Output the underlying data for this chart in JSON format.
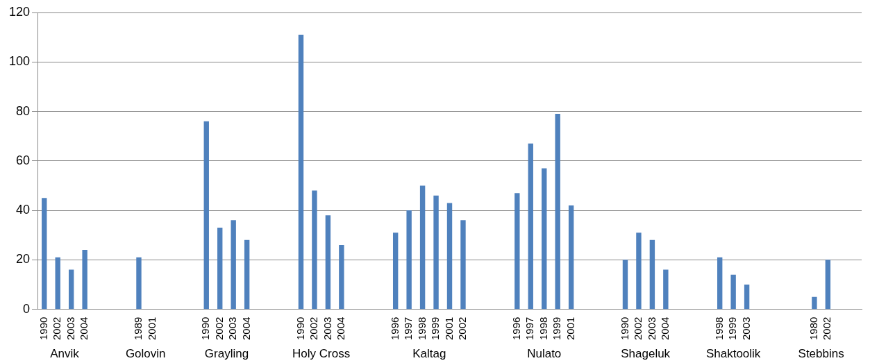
{
  "chart_data": {
    "type": "bar",
    "categories": [
      "1990",
      "2002",
      "2003",
      "2004",
      null,
      null,
      null,
      "1989",
      "2001",
      null,
      null,
      null,
      "1990",
      "2002",
      "2003",
      "2004",
      null,
      null,
      null,
      "1990",
      "2002",
      "2003",
      "2004",
      null,
      null,
      null,
      "1996",
      "1997",
      "1998",
      "1999",
      "2001",
      "2002",
      null,
      null,
      null,
      "1996",
      "1997",
      "1998",
      "1999",
      "2001",
      null,
      null,
      null,
      "1990",
      "2002",
      "2003",
      "2004",
      null,
      null,
      null,
      "1998",
      "1999",
      "2003",
      null,
      null,
      null,
      null,
      "1980",
      "2002",
      null,
      null
    ],
    "values": [
      45,
      21,
      16,
      24,
      null,
      null,
      null,
      21,
      null,
      null,
      null,
      null,
      76,
      33,
      36,
      28,
      null,
      null,
      null,
      111,
      48,
      38,
      26,
      null,
      null,
      null,
      31,
      40,
      50,
      46,
      43,
      36,
      null,
      null,
      null,
      47,
      67,
      57,
      79,
      42,
      null,
      null,
      null,
      20,
      31,
      28,
      16,
      null,
      null,
      null,
      21,
      14,
      10,
      null,
      null,
      null,
      null,
      5,
      20,
      null,
      null
    ],
    "color": "#4f81bd",
    "ylim": [
      0,
      120
    ],
    "yticks": [
      0,
      20,
      40,
      60,
      80,
      100,
      120
    ],
    "grid": "y",
    "annotations": [
      "Anvik",
      "Golovin",
      "Grayling",
      "Holy Cross",
      "Kaltag",
      "Nulato",
      "Shageluk",
      "Shaktoolik",
      "Stebbins"
    ]
  }
}
